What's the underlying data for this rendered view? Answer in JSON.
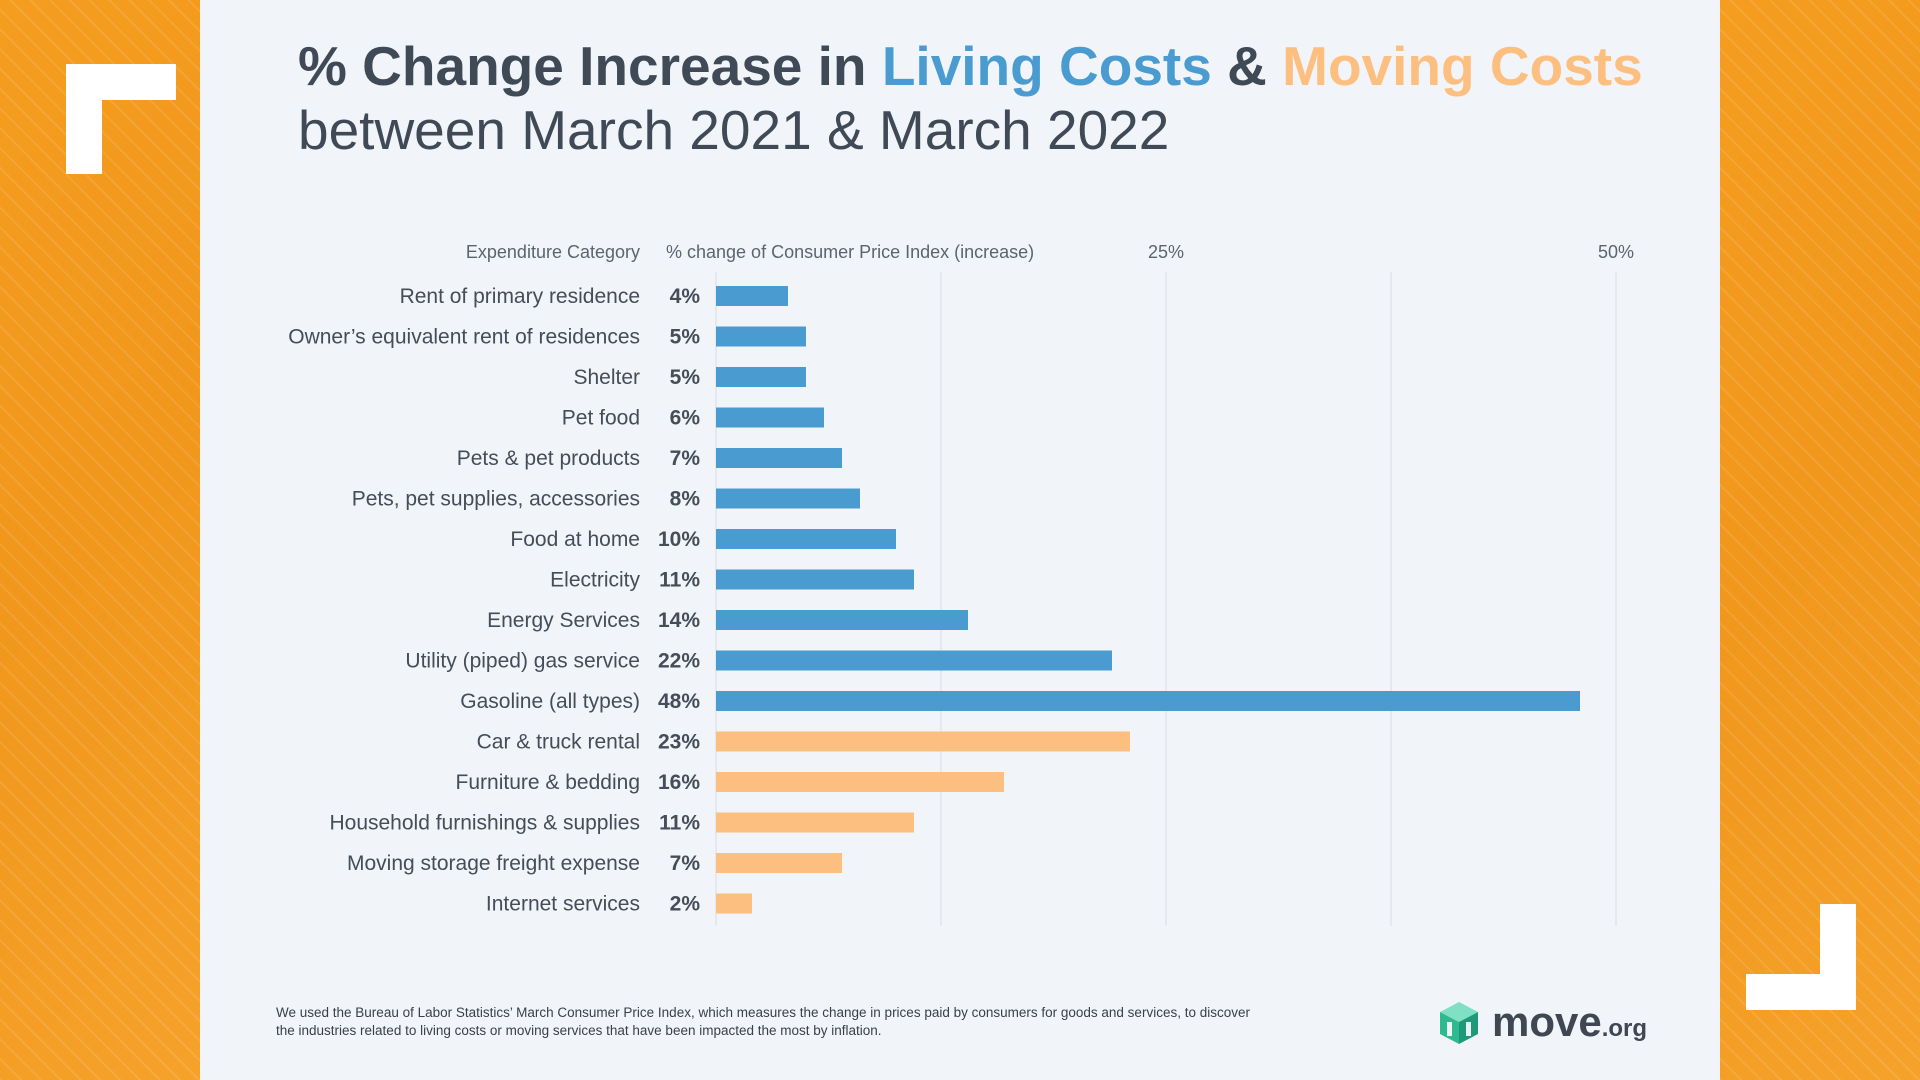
{
  "title": {
    "part1": "% Change Increase in ",
    "living": "Living Costs",
    "amp": " & ",
    "moving": "Moving Costs",
    "line2": "between March 2021 & March 2022"
  },
  "chart_data": {
    "type": "bar",
    "orientation": "horizontal",
    "header_category": "Expenditure Category",
    "header_value": "% change of Consumer Price Index (increase)",
    "tick_labels": [
      "25%",
      "50%"
    ],
    "xlim": [
      0,
      50
    ],
    "grid": true,
    "colors": {
      "living": "#4a9bd0",
      "moving": "#fdbf80"
    },
    "bars": [
      {
        "category": "Rent of primary residence",
        "value": 4,
        "label": "4%",
        "group": "living"
      },
      {
        "category": "Owner’s equivalent rent of residences",
        "value": 5,
        "label": "5%",
        "group": "living"
      },
      {
        "category": "Shelter",
        "value": 5,
        "label": "5%",
        "group": "living"
      },
      {
        "category": "Pet food",
        "value": 6,
        "label": "6%",
        "group": "living"
      },
      {
        "category": "Pets & pet products",
        "value": 7,
        "label": "7%",
        "group": "living"
      },
      {
        "category": "Pets, pet supplies, accessories",
        "value": 8,
        "label": "8%",
        "group": "living"
      },
      {
        "category": "Food at home",
        "value": 10,
        "label": "10%",
        "group": "living"
      },
      {
        "category": "Electricity",
        "value": 11,
        "label": "11%",
        "group": "living"
      },
      {
        "category": "Energy Services",
        "value": 14,
        "label": "14%",
        "group": "living"
      },
      {
        "category": "Utility (piped) gas service",
        "value": 22,
        "label": "22%",
        "group": "living"
      },
      {
        "category": "Gasoline (all types)",
        "value": 48,
        "label": "48%",
        "group": "living"
      },
      {
        "category": "Car & truck rental",
        "value": 23,
        "label": "23%",
        "group": "moving"
      },
      {
        "category": "Furniture & bedding",
        "value": 16,
        "label": "16%",
        "group": "moving"
      },
      {
        "category": "Household furnishings & supplies",
        "value": 11,
        "label": "11%",
        "group": "moving"
      },
      {
        "category": "Moving storage freight expense",
        "value": 7,
        "label": "7%",
        "group": "moving"
      },
      {
        "category": "Internet services",
        "value": 2,
        "label": "2%",
        "group": "moving"
      }
    ]
  },
  "footnote": "We used the Bureau of Labor Statistics’ March Consumer Price Index, which measures the change in prices paid by consumers for goods and services, to discover the industries related to living costs or moving services that have been impacted the most by inflation.",
  "logo": {
    "word": "move",
    "suffix": ".org",
    "icon": "cube-box-icon"
  },
  "colors": {
    "background_orange": "#f7a129",
    "panel": "#f1f4f9",
    "text_dark": "#404a57"
  }
}
